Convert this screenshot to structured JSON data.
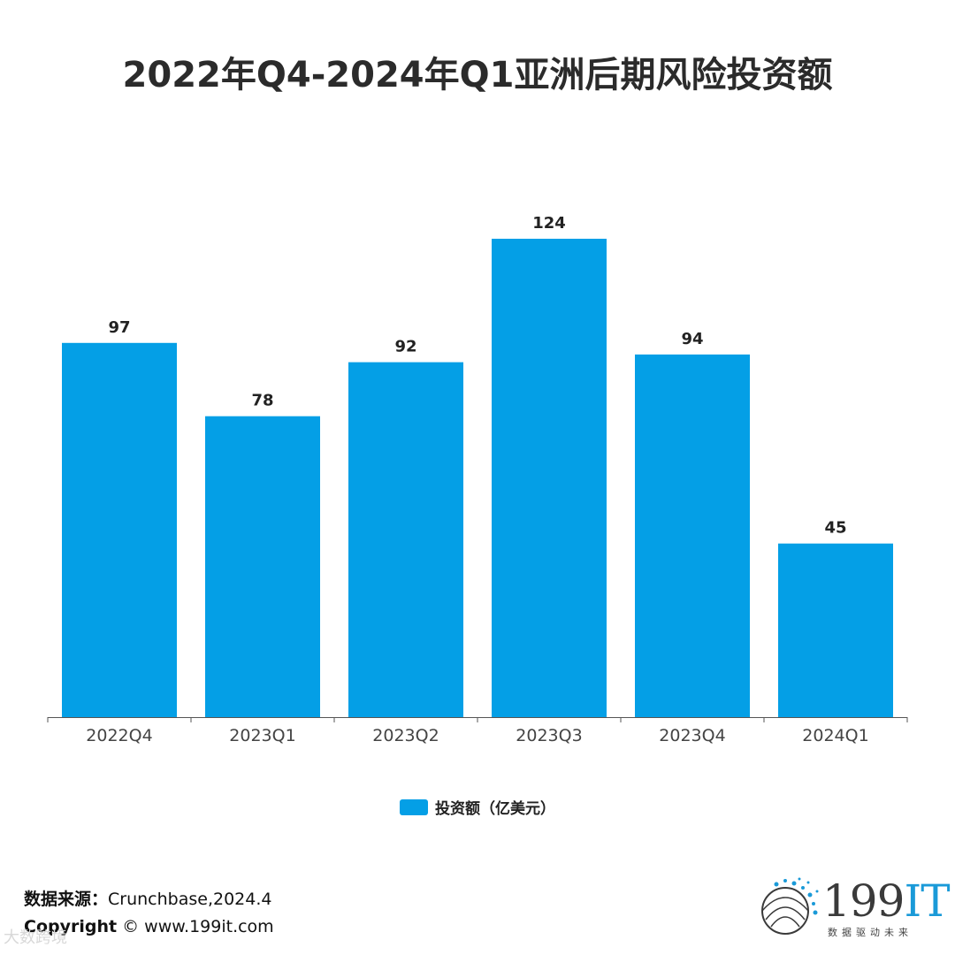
{
  "title": "2022年Q4-2024年Q1亚洲后期风险投资额",
  "chart_data": {
    "type": "bar",
    "categories": [
      "2022Q4",
      "2023Q1",
      "2023Q2",
      "2023Q3",
      "2023Q4",
      "2024Q1"
    ],
    "series": [
      {
        "name": "投资额（亿美元）",
        "values": [
          97,
          78,
          92,
          124,
          94,
          45
        ]
      }
    ],
    "ylim": [
      0,
      124
    ],
    "grid": false,
    "legend_position": "bottom",
    "bar_color": "#049fe6"
  },
  "legend": {
    "label": "投资额（亿美元）"
  },
  "footer": {
    "source_label": "数据来源：",
    "source_value": "Crunchbase,2024.4",
    "copyright_label": "Copyright",
    "copyright_value": "© www.199it.com"
  },
  "logo": {
    "name": "199IT",
    "main": "199",
    "it": "IT",
    "tagline": "数据驱动未来"
  },
  "watermark": "大数跨境",
  "colors": {
    "accent": "#1a9ad8",
    "bar": "#049fe6"
  }
}
